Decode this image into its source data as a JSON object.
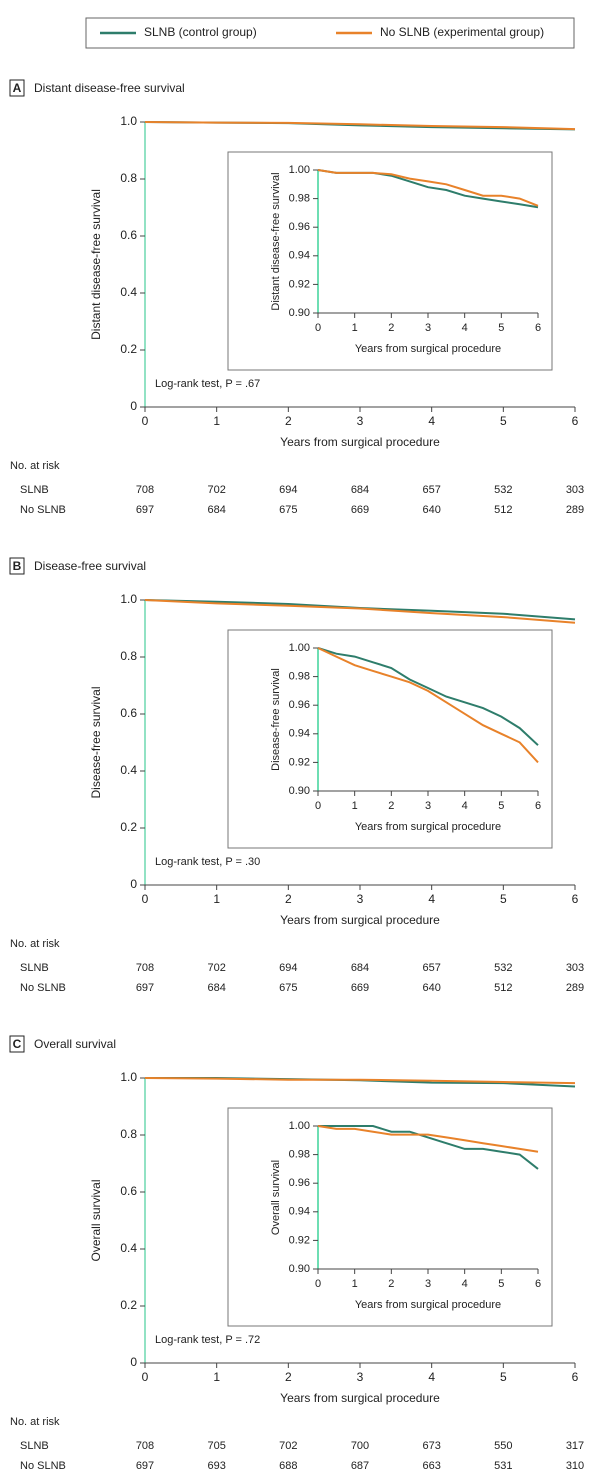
{
  "chart_data": [
    {
      "type": "line",
      "panel_label": "A",
      "title": "Distant disease-free survival",
      "xlabel": "Years from surgical procedure",
      "ylabel": "Distant disease-free survival",
      "annotation": "Log-rank test, P = .67",
      "x": [
        0,
        1,
        2,
        3,
        4,
        5,
        6
      ],
      "xlim": [
        0,
        6
      ],
      "xticks": [
        0,
        1,
        2,
        3,
        4,
        5,
        6
      ],
      "ylim": [
        0,
        1
      ],
      "yticks": [
        0,
        0.2,
        0.4,
        0.6,
        0.8,
        {
          "value": 1,
          "label": "1.0"
        }
      ],
      "series": [
        {
          "name": "SLNB (control group)",
          "color": "#2e7d6b",
          "values": [
            1,
            0.998,
            0.996,
            0.988,
            0.982,
            0.978,
            0.974
          ]
        },
        {
          "name": "No SLNB (experimental group)",
          "color": "#e8822a",
          "values": [
            1,
            0.998,
            0.997,
            0.992,
            0.986,
            0.982,
            0.975
          ]
        }
      ],
      "inset": {
        "type": "line",
        "xlabel": "Years from surgical procedure",
        "ylabel": "Distant disease-free survival",
        "x": [
          0,
          0.5,
          1,
          1.5,
          2,
          2.5,
          3,
          3.5,
          4,
          4.5,
          5,
          5.5,
          6
        ],
        "xlim": [
          0,
          6
        ],
        "xticks": [
          0,
          1,
          2,
          3,
          4,
          5,
          6
        ],
        "ylim": [
          0.9,
          1
        ],
        "yticks": [
          {
            "value": 0.9,
            "label": "0.90"
          },
          {
            "value": 0.92,
            "label": "0.92"
          },
          {
            "value": 0.94,
            "label": "0.94"
          },
          {
            "value": 0.96,
            "label": "0.96"
          },
          {
            "value": 0.98,
            "label": "0.98"
          },
          {
            "value": 1,
            "label": "1.00"
          }
        ],
        "series": [
          {
            "color": "#2e7d6b",
            "values": [
              1,
              0.998,
              0.998,
              0.998,
              0.996,
              0.992,
              0.988,
              0.986,
              0.982,
              0.98,
              0.978,
              0.976,
              0.974
            ]
          },
          {
            "color": "#e8822a",
            "values": [
              1,
              0.998,
              0.998,
              0.998,
              0.997,
              0.994,
              0.992,
              0.99,
              0.986,
              0.982,
              0.982,
              0.98,
              0.975
            ]
          }
        ]
      },
      "risk_table": {
        "title": "No. at risk",
        "rows": [
          {
            "label": "SLNB",
            "values": [
              708,
              702,
              694,
              684,
              657,
              532,
              303
            ]
          },
          {
            "label": "No SLNB",
            "values": [
              697,
              684,
              675,
              669,
              640,
              512,
              289
            ]
          }
        ]
      }
    },
    {
      "type": "line",
      "panel_label": "B",
      "title": "Disease-free survival",
      "xlabel": "Years from surgical procedure",
      "ylabel": "Disease-free survival",
      "annotation": "Log-rank test, P = .30",
      "x": [
        0,
        1,
        2,
        3,
        4,
        5,
        6
      ],
      "xlim": [
        0,
        6
      ],
      "xticks": [
        0,
        1,
        2,
        3,
        4,
        5,
        6
      ],
      "ylim": [
        0,
        1
      ],
      "yticks": [
        0,
        0.2,
        0.4,
        0.6,
        0.8,
        {
          "value": 1,
          "label": "1.0"
        }
      ],
      "series": [
        {
          "color": "#2e7d6b",
          "values": [
            1,
            0.994,
            0.986,
            0.972,
            0.962,
            0.952,
            0.932
          ]
        },
        {
          "color": "#e8822a",
          "values": [
            1,
            0.988,
            0.98,
            0.97,
            0.954,
            0.94,
            0.92
          ]
        }
      ],
      "inset": {
        "type": "line",
        "xlabel": "Years from surgical procedure",
        "ylabel": "Disease-free survival",
        "x": [
          0,
          0.5,
          1,
          1.5,
          2,
          2.5,
          3,
          3.5,
          4,
          4.5,
          5,
          5.5,
          6
        ],
        "xlim": [
          0,
          6
        ],
        "xticks": [
          0,
          1,
          2,
          3,
          4,
          5,
          6
        ],
        "ylim": [
          0.9,
          1
        ],
        "yticks": [
          {
            "value": 0.9,
            "label": "0.90"
          },
          {
            "value": 0.92,
            "label": "0.92"
          },
          {
            "value": 0.94,
            "label": "0.94"
          },
          {
            "value": 0.96,
            "label": "0.96"
          },
          {
            "value": 0.98,
            "label": "0.98"
          },
          {
            "value": 1,
            "label": "1.00"
          }
        ],
        "series": [
          {
            "color": "#2e7d6b",
            "values": [
              1,
              0.996,
              0.994,
              0.99,
              0.986,
              0.978,
              0.972,
              0.966,
              0.962,
              0.958,
              0.952,
              0.944,
              0.932
            ]
          },
          {
            "color": "#e8822a",
            "values": [
              1,
              0.994,
              0.988,
              0.984,
              0.98,
              0.976,
              0.97,
              0.962,
              0.954,
              0.946,
              0.94,
              0.934,
              0.92
            ]
          }
        ]
      },
      "risk_table": {
        "title": "No. at risk",
        "rows": [
          {
            "label": "SLNB",
            "values": [
              708,
              702,
              694,
              684,
              657,
              532,
              303
            ]
          },
          {
            "label": "No SLNB",
            "values": [
              697,
              684,
              675,
              669,
              640,
              512,
              289
            ]
          }
        ]
      }
    },
    {
      "type": "line",
      "panel_label": "C",
      "title": "Overall survival",
      "xlabel": "Years from surgical procedure",
      "ylabel": "Overall survival",
      "annotation": "Log-rank test, P = .72",
      "x": [
        0,
        1,
        2,
        3,
        4,
        5,
        6
      ],
      "xlim": [
        0,
        6
      ],
      "xticks": [
        0,
        1,
        2,
        3,
        4,
        5,
        6
      ],
      "ylim": [
        0,
        1
      ],
      "yticks": [
        0,
        0.2,
        0.4,
        0.6,
        0.8,
        {
          "value": 1,
          "label": "1.0"
        }
      ],
      "series": [
        {
          "color": "#2e7d6b",
          "values": [
            1,
            1,
            0.996,
            0.992,
            0.984,
            0.982,
            0.97
          ]
        },
        {
          "color": "#e8822a",
          "values": [
            1,
            0.998,
            0.994,
            0.994,
            0.99,
            0.986,
            0.982
          ]
        }
      ],
      "inset": {
        "type": "line",
        "xlabel": "Years from surgical procedure",
        "ylabel": "Overall survival",
        "x": [
          0,
          0.5,
          1,
          1.5,
          2,
          2.5,
          3,
          3.5,
          4,
          4.5,
          5,
          5.5,
          6
        ],
        "xlim": [
          0,
          6
        ],
        "xticks": [
          0,
          1,
          2,
          3,
          4,
          5,
          6
        ],
        "ylim": [
          0.9,
          1
        ],
        "yticks": [
          {
            "value": 0.9,
            "label": "0.90"
          },
          {
            "value": 0.92,
            "label": "0.92"
          },
          {
            "value": 0.94,
            "label": "0.94"
          },
          {
            "value": 0.96,
            "label": "0.96"
          },
          {
            "value": 0.98,
            "label": "0.98"
          },
          {
            "value": 1,
            "label": "1.00"
          }
        ],
        "series": [
          {
            "color": "#2e7d6b",
            "values": [
              1,
              1,
              1,
              1,
              0.996,
              0.996,
              0.992,
              0.988,
              0.984,
              0.984,
              0.982,
              0.98,
              0.97
            ]
          },
          {
            "color": "#e8822a",
            "values": [
              1,
              0.998,
              0.998,
              0.996,
              0.994,
              0.994,
              0.994,
              0.992,
              0.99,
              0.988,
              0.986,
              0.984,
              0.982
            ]
          }
        ]
      },
      "risk_table": {
        "title": "No. at risk",
        "rows": [
          {
            "label": "SLNB",
            "values": [
              708,
              705,
              702,
              700,
              673,
              550,
              317
            ]
          },
          {
            "label": "No SLNB",
            "values": [
              697,
              693,
              688,
              687,
              663,
              531,
              310
            ]
          }
        ]
      }
    }
  ]
}
